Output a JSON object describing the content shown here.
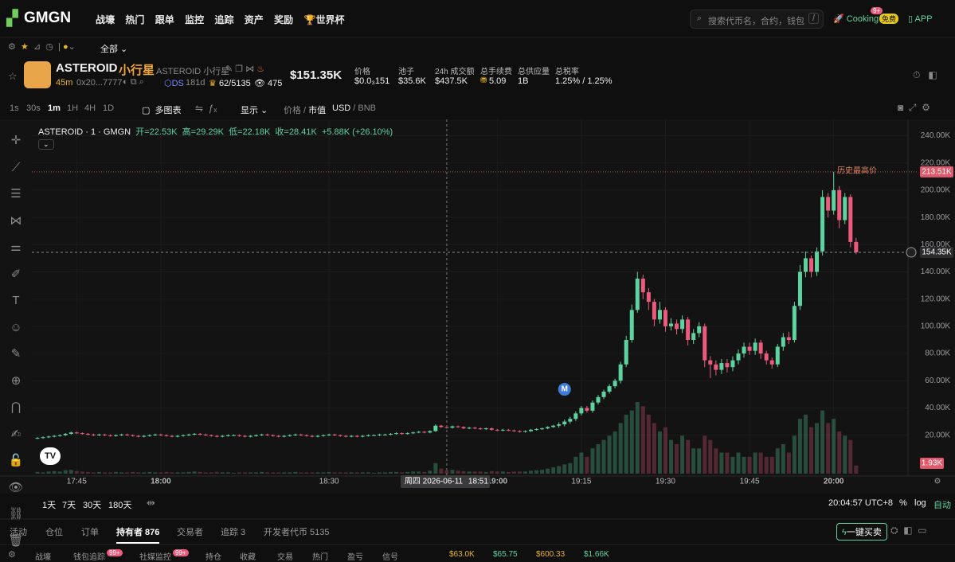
{
  "nav": {
    "logo": "GMGN",
    "items": [
      "战壕",
      "热门",
      "跟单",
      "监控",
      "追踪",
      "资产",
      "奖励",
      "世界杯"
    ],
    "search": "搜索代币名，合约，钱包",
    "search_key": "/",
    "cooking": "Cooking",
    "cooking_badge": "9+",
    "cooking_free": "免费",
    "app": "APP"
  },
  "subnav": {
    "filter": "全部"
  },
  "token": {
    "symbol": "ASTEROID",
    "name": "小行星",
    "full": "ASTEROID 小行星",
    "age": "45m",
    "address": "0x20...7777",
    "ds": "DS",
    "days": "181d",
    "holders_ratio": "62/5135",
    "views": "475",
    "market_cap": "$151.35K"
  },
  "stats": [
    {
      "label": "价格",
      "value": "$0.0₃151"
    },
    {
      "label": "池子",
      "value": "$35.6K"
    },
    {
      "label": "24h 成交额",
      "value": "$437.5K"
    },
    {
      "label": "总手续费",
      "value": "5.09"
    },
    {
      "label": "总供应量",
      "value": "1B"
    },
    {
      "label": "总税率",
      "value": "1.25% / 1.25%"
    }
  ],
  "toolbar": {
    "intervals": [
      "1s",
      "30s",
      "1m",
      "1H",
      "4H",
      "1D"
    ],
    "multi": "多图表",
    "display": "显示",
    "price": "价格",
    "mcap": "市值",
    "usd": "USD",
    "bnb": "BNB"
  },
  "chart_data": {
    "type": "candlestick",
    "legend": {
      "name": "ASTEROID · 1 · GMGN",
      "open": "开=22.53K",
      "high": "高=29.29K",
      "low": "低=22.18K",
      "close": "收=28.41K",
      "change": "+5.88K (+26.10%)"
    },
    "x": [
      "17:38",
      "17:39",
      "17:40",
      "17:41",
      "17:42",
      "17:43",
      "17:44",
      "17:45",
      "17:46",
      "17:47",
      "17:48",
      "17:49",
      "17:50",
      "17:51",
      "17:52",
      "17:53",
      "17:54",
      "17:55",
      "17:56",
      "17:57",
      "17:58",
      "17:59",
      "18:00",
      "18:01",
      "18:02",
      "18:03",
      "18:04",
      "18:05",
      "18:06",
      "18:07",
      "18:08",
      "18:09",
      "18:10",
      "18:11",
      "18:12",
      "18:13",
      "18:14",
      "18:15",
      "18:16",
      "18:17",
      "18:18",
      "18:19",
      "18:20",
      "18:21",
      "18:22",
      "18:23",
      "18:24",
      "18:25",
      "18:26",
      "18:27",
      "18:28",
      "18:29",
      "18:30",
      "18:31",
      "18:32",
      "18:33",
      "18:34",
      "18:35",
      "18:36",
      "18:37",
      "18:38",
      "18:39",
      "18:40",
      "18:41",
      "18:42",
      "18:43",
      "18:44",
      "18:45",
      "18:46",
      "18:47",
      "18:48",
      "18:49",
      "18:50",
      "18:51",
      "18:52",
      "18:53",
      "18:54",
      "18:55",
      "18:56",
      "18:57",
      "18:58",
      "18:59",
      "19:00",
      "19:01",
      "19:02",
      "19:03",
      "19:04",
      "19:05",
      "19:06",
      "19:07",
      "19:08",
      "19:09",
      "19:10",
      "19:11",
      "19:12",
      "19:13",
      "19:14",
      "19:15",
      "19:16",
      "19:17",
      "19:18",
      "19:19",
      "19:20",
      "19:21",
      "19:22",
      "19:23",
      "19:24",
      "19:25",
      "19:26",
      "19:27",
      "19:28",
      "19:29",
      "19:30",
      "19:31",
      "19:32",
      "19:33",
      "19:34",
      "19:35",
      "19:36",
      "19:37",
      "19:38",
      "19:39",
      "19:40",
      "19:41",
      "19:42",
      "19:43",
      "19:44",
      "19:45",
      "19:46",
      "19:47",
      "19:48",
      "19:49",
      "19:50",
      "19:51",
      "19:52",
      "19:53",
      "19:54",
      "19:55",
      "19:56",
      "19:57",
      "19:58",
      "19:59",
      "20:00",
      "20:01",
      "20:02",
      "20:03",
      "20:04"
    ],
    "open": [
      17.8,
      18,
      18.5,
      19,
      19.5,
      20,
      21,
      22,
      21.5,
      21,
      20.5,
      20,
      20.5,
      20,
      19.5,
      20,
      20.5,
      20,
      19.5,
      19,
      19.5,
      20,
      20.5,
      20,
      19.5,
      19,
      19.5,
      20,
      20.5,
      21,
      20.5,
      20,
      19.5,
      19,
      19.5,
      20,
      20,
      19.5,
      19,
      19.5,
      20,
      20.5,
      20,
      19.5,
      19,
      19.5,
      20,
      20.5,
      20,
      19.5,
      19,
      19.5,
      20,
      20.5,
      20,
      19.5,
      19,
      19.5,
      19,
      19.5,
      20,
      20,
      20.5,
      20.5,
      21,
      21.5,
      21,
      21.5,
      22,
      22.5,
      22,
      23,
      27,
      26,
      25.5,
      26.5,
      26,
      25,
      25.5,
      25,
      24.5,
      25,
      24,
      23.5,
      24,
      23.5,
      23,
      22.5,
      23,
      24,
      24.5,
      25,
      26,
      27,
      28,
      30,
      32,
      36,
      40,
      38,
      44,
      48,
      52,
      56,
      60,
      72,
      90,
      112,
      135,
      125,
      118,
      105,
      112,
      100,
      102,
      98,
      105,
      90,
      95,
      100,
      75,
      72,
      68,
      73,
      70,
      75,
      80,
      85,
      82,
      88,
      80,
      75,
      72,
      85,
      92,
      90,
      115,
      140,
      150,
      140,
      155,
      195,
      185,
      200,
      178,
      195,
      162
    ],
    "high": [
      18.6,
      19.1,
      19.6,
      20.1,
      20.6,
      21.6,
      22.6,
      22.6,
      22.1,
      21.6,
      21.1,
      21.1,
      21.1,
      20.6,
      20.6,
      21.1,
      21.1,
      20.6,
      20.1,
      20.1,
      20.6,
      21.1,
      21.1,
      20.6,
      20.1,
      20.1,
      20.6,
      21.1,
      21.6,
      21.6,
      21.1,
      20.6,
      20.1,
      20.1,
      20.6,
      20.6,
      20.6,
      20.1,
      20.1,
      20.6,
      21.1,
      21.1,
      20.6,
      20.1,
      20.1,
      20.6,
      21.1,
      21.1,
      20.6,
      20.1,
      20.1,
      20.6,
      21.1,
      21.1,
      20.6,
      20.1,
      20.1,
      20.1,
      20.1,
      20.6,
      20.6,
      21.1,
      21.1,
      21.6,
      22.1,
      22.1,
      22.1,
      22.6,
      23.1,
      23.1,
      23.6,
      28,
      27.6,
      26.6,
      27.1,
      27.1,
      26.6,
      26.1,
      26.1,
      25.6,
      25.6,
      25.6,
      24.6,
      24.6,
      24.6,
      24.1,
      23.6,
      23.6,
      24.6,
      25.1,
      25.6,
      26.6,
      27.6,
      29.5,
      31.5,
      33.5,
      37.5,
      41.5,
      41.5,
      45.5,
      49.5,
      53.5,
      57.5,
      61.5,
      74,
      93,
      116,
      140,
      138,
      128,
      120,
      118,
      114,
      106,
      105,
      108,
      107,
      98,
      103,
      102,
      78,
      75,
      76,
      76,
      78,
      83,
      88,
      88,
      91,
      90,
      82,
      77,
      87,
      95,
      96,
      118,
      145,
      155,
      152,
      158,
      200,
      198,
      213.51,
      203,
      198,
      197,
      165
    ],
    "low": [
      17.2,
      17.4,
      17.9,
      18.4,
      18.9,
      19.4,
      20.4,
      20.9,
      20.4,
      19.9,
      19.4,
      19.4,
      19.4,
      18.9,
      18.9,
      19.4,
      19.4,
      18.9,
      18.4,
      18.4,
      18.9,
      19.4,
      19.4,
      18.9,
      18.4,
      18.4,
      18.9,
      19.4,
      19.9,
      19.9,
      19.4,
      18.9,
      18.4,
      18.4,
      18.9,
      19.4,
      18.9,
      18.4,
      18.4,
      18.9,
      19.4,
      19.4,
      18.9,
      18.4,
      18.4,
      18.9,
      19.4,
      19.4,
      18.9,
      18.4,
      18.4,
      18.9,
      19.4,
      19.4,
      18.9,
      18.4,
      18.4,
      18.4,
      18.4,
      18.9,
      19.4,
      19.4,
      19.9,
      19.9,
      20.4,
      20.4,
      20.4,
      20.9,
      21.4,
      21.4,
      21.4,
      22.4,
      25.4,
      24.9,
      24.9,
      25.4,
      24.4,
      24.4,
      24.4,
      23.9,
      23.9,
      23.4,
      22.9,
      22.9,
      22.9,
      22.4,
      21.9,
      21.9,
      22.4,
      23.4,
      23.9,
      24.4,
      25.4,
      25.5,
      26.5,
      28.5,
      30.5,
      34.5,
      36.5,
      36.5,
      42.5,
      46.5,
      50.5,
      54.5,
      58,
      70,
      88,
      110,
      120,
      112,
      100,
      102,
      96,
      97,
      94,
      95,
      86,
      87,
      92,
      70,
      62,
      64,
      65,
      66,
      67,
      72,
      77,
      79,
      79,
      76,
      72,
      69,
      70,
      82,
      87,
      88,
      112,
      136,
      136,
      137,
      152,
      180,
      182,
      172,
      175,
      158,
      153
    ],
    "close": [
      18,
      18.5,
      19,
      19.5,
      20,
      21,
      22,
      21.5,
      21,
      20.5,
      20,
      20.5,
      20,
      19.5,
      20,
      20.5,
      20,
      19.5,
      19,
      19.5,
      20,
      20.5,
      20,
      19.5,
      19,
      19.5,
      20,
      20.5,
      21,
      20.5,
      20,
      19.5,
      19,
      19.5,
      20,
      20,
      19.5,
      19,
      19.5,
      20,
      20.5,
      20,
      19.5,
      19,
      19.5,
      20,
      20.5,
      20,
      19.5,
      19,
      19.5,
      20,
      20.5,
      20,
      19.5,
      19,
      19.5,
      19,
      19.5,
      20,
      20,
      20.5,
      20.5,
      21,
      21.5,
      21,
      21.5,
      22,
      22.5,
      22,
      23,
      27,
      26,
      25.5,
      26.5,
      26,
      25,
      25.5,
      25,
      24.5,
      25,
      24,
      23.5,
      24,
      23.5,
      23,
      22.5,
      23,
      24,
      24.5,
      25,
      26,
      27,
      28,
      30,
      32,
      36,
      40,
      38,
      44,
      48,
      52,
      56,
      60,
      72,
      90,
      112,
      135,
      125,
      118,
      105,
      112,
      100,
      102,
      98,
      105,
      90,
      95,
      100,
      75,
      72,
      68,
      73,
      70,
      75,
      80,
      85,
      82,
      88,
      80,
      75,
      72,
      85,
      92,
      90,
      115,
      140,
      150,
      140,
      155,
      195,
      185,
      200,
      178,
      195,
      162,
      154.35
    ],
    "volume": [
      0.4,
      0.3,
      0.5,
      0.6,
      0.5,
      0.8,
      0.9,
      0.6,
      0.5,
      0.4,
      0.3,
      0.4,
      0.3,
      0.3,
      0.4,
      0.3,
      0.3,
      0.4,
      0.3,
      0.3,
      0.4,
      0.3,
      0.3,
      0.4,
      0.3,
      0.3,
      0.3,
      0.4,
      0.5,
      0.4,
      0.3,
      0.3,
      0.4,
      0.3,
      0.3,
      0.2,
      0.3,
      0.3,
      0.3,
      0.3,
      0.4,
      0.3,
      0.3,
      0.3,
      0.3,
      0.3,
      0.4,
      0.3,
      0.3,
      0.3,
      0.3,
      0.3,
      0.4,
      0.3,
      0.3,
      0.3,
      0.3,
      0.3,
      0.3,
      0.3,
      0.2,
      0.3,
      0.3,
      0.4,
      0.4,
      0.3,
      0.4,
      0.5,
      0.5,
      0.4,
      0.7,
      2.5,
      1.2,
      0.8,
      0.9,
      0.7,
      0.6,
      0.5,
      0.5,
      0.5,
      0.4,
      0.6,
      0.5,
      0.5,
      0.4,
      0.5,
      0.5,
      0.5,
      0.7,
      0.8,
      0.9,
      1.2,
      1.5,
      1.8,
      2.2,
      2.5,
      4,
      5,
      4,
      6,
      7,
      8,
      9,
      10,
      12,
      14,
      15,
      17,
      16,
      14,
      12,
      10,
      11,
      8,
      7,
      9,
      8,
      6,
      6,
      9,
      8,
      6,
      5,
      5,
      4,
      5,
      4,
      4,
      5,
      5,
      4,
      4,
      6,
      7,
      5,
      9,
      13,
      14,
      11,
      12,
      15,
      12,
      13,
      10,
      9,
      8,
      1.93
    ],
    "volume_label": "1.93K",
    "up_color": "#5ed3a0",
    "down_color": "#ec5b7d",
    "ylim": [
      -10,
      252
    ],
    "yticks": [
      {
        "value": 20,
        "label": "20.00K"
      },
      {
        "value": 40,
        "label": "40.00K"
      },
      {
        "value": 60,
        "label": "60.00K"
      },
      {
        "value": 80,
        "label": "80.00K"
      },
      {
        "value": 100,
        "label": "100.00K"
      },
      {
        "value": 120,
        "label": "120.00K"
      },
      {
        "value": 140,
        "label": "140.00K"
      },
      {
        "value": 160,
        "label": "160.00K"
      },
      {
        "value": 180,
        "label": "180.00K"
      },
      {
        "value": 200,
        "label": "200.00K"
      },
      {
        "value": 220,
        "label": "220.00K"
      },
      {
        "value": 240,
        "label": "240.00K"
      }
    ],
    "xticks": [
      "17:45",
      "18:00",
      "18:30",
      "19:00",
      "19:15",
      "19:30",
      "19:45",
      "20:00"
    ],
    "crosshair": {
      "x": "18:51",
      "label": "周四 2026-06-11"
    },
    "ath": {
      "label": "历史最高价",
      "value": 213.51,
      "value_label": "213.51K"
    },
    "last": {
      "value": 154.35,
      "value_label": "154.35K"
    },
    "marker": {
      "x": "19:12",
      "label": "M"
    }
  },
  "range": {
    "buttons": [
      "1天",
      "7天",
      "30天",
      "180天"
    ],
    "clock": "20:04:57 UTC+8",
    "percent": "%",
    "log": "log",
    "auto": "自动"
  },
  "tabs": [
    "活动",
    "仓位",
    "订单",
    "持有者 876",
    "交易者",
    "追踪 3",
    "开发者代币 5135"
  ],
  "quick_trade": "一键买卖",
  "footer": {
    "items": [
      "战壕",
      "钱包追踪",
      "社媒监控",
      "持仓",
      "收藏",
      "交易",
      "热门",
      "盈亏",
      "信号"
    ],
    "badges": [
      "99+",
      "99+"
    ],
    "prices": [
      "$63.0K",
      "$65.75",
      "$600.33",
      "$1.66K"
    ]
  }
}
